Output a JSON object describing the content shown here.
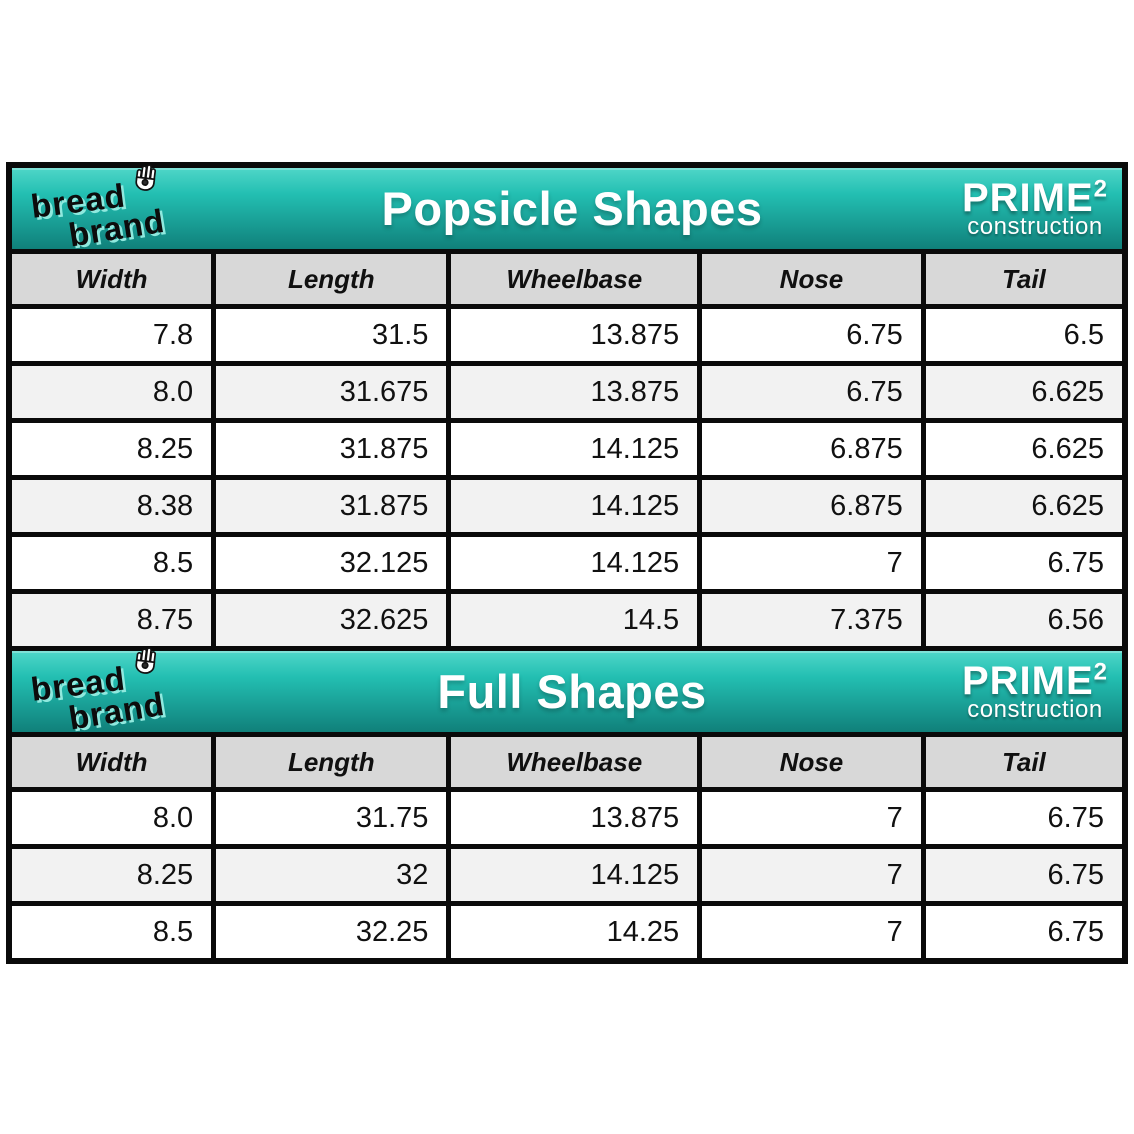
{
  "brand": {
    "line1": "bread",
    "line2": "brand",
    "icon": "hand-icon"
  },
  "construction_logo": {
    "name": "PRIME",
    "exponent": "2",
    "tagline": "construction"
  },
  "tables": [
    {
      "title": "Popsicle Shapes",
      "columns": [
        "Width",
        "Length",
        "Wheelbase",
        "Nose",
        "Tail"
      ],
      "rows": [
        [
          "7.8",
          "31.5",
          "13.875",
          "6.75",
          "6.5"
        ],
        [
          "8.0",
          "31.675",
          "13.875",
          "6.75",
          "6.625"
        ],
        [
          "8.25",
          "31.875",
          "14.125",
          "6.875",
          "6.625"
        ],
        [
          "8.38",
          "31.875",
          "14.125",
          "6.875",
          "6.625"
        ],
        [
          "8.5",
          "32.125",
          "14.125",
          "7",
          "6.75"
        ],
        [
          "8.75",
          "32.625",
          "14.5",
          "7.375",
          "6.56"
        ]
      ]
    },
    {
      "title": "Full Shapes",
      "columns": [
        "Width",
        "Length",
        "Wheelbase",
        "Nose",
        "Tail"
      ],
      "rows": [
        [
          "8.0",
          "31.75",
          "13.875",
          "7",
          "6.75"
        ],
        [
          "8.25",
          "32",
          "14.125",
          "7",
          "6.75"
        ],
        [
          "8.5",
          "32.25",
          "14.25",
          "7",
          "6.75"
        ]
      ]
    }
  ],
  "colors": {
    "band_top": "#4fd6c8",
    "band_bottom": "#10807a",
    "header_bg": "#d8d8d8",
    "row_alt": "#f2f2f2",
    "border": "#0a0a0a",
    "logo_glow": "#8fe9de"
  }
}
